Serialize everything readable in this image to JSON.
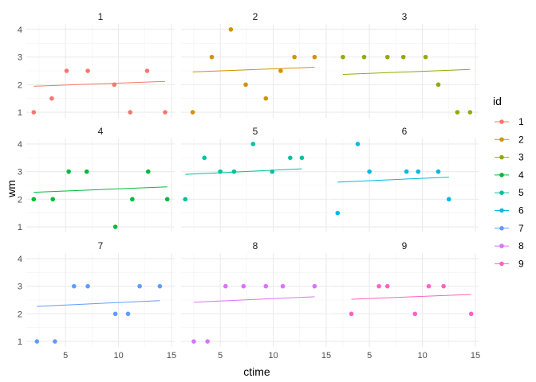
{
  "chart_data": {
    "type": "scatter",
    "facet_by": "id",
    "xlabel": "ctime",
    "ylabel": "wm",
    "xlim": [
      1.3,
      15.3
    ],
    "ylim": [
      0.8,
      4.2
    ],
    "xticks": [
      5,
      10,
      15
    ],
    "yticks": [
      1,
      2,
      3,
      4
    ],
    "grid": true,
    "legend": {
      "title": "id",
      "position": "right"
    },
    "colors": [
      "#F8766D",
      "#D39200",
      "#93AA00",
      "#00BA38",
      "#00C19F",
      "#00B9E3",
      "#619CFF",
      "#DB72FB",
      "#FF61C3"
    ],
    "series": [
      {
        "name": "1",
        "points": [
          [
            2.0,
            1
          ],
          [
            3.7,
            1.5
          ],
          [
            5.1,
            2.5
          ],
          [
            7.1,
            2.5
          ],
          [
            9.6,
            2
          ],
          [
            11.1,
            1
          ],
          [
            12.7,
            2.5
          ],
          [
            14.4,
            1
          ]
        ],
        "fit": [
          [
            2.0,
            1.94
          ],
          [
            14.4,
            2.12
          ]
        ]
      },
      {
        "name": "2",
        "points": [
          [
            2.4,
            1
          ],
          [
            4.2,
            3
          ],
          [
            6.0,
            4
          ],
          [
            7.4,
            2
          ],
          [
            9.3,
            1.5
          ],
          [
            10.7,
            2.5
          ],
          [
            12.0,
            3
          ],
          [
            13.9,
            3
          ]
        ],
        "fit": [
          [
            2.4,
            2.46
          ],
          [
            13.9,
            2.63
          ]
        ]
      },
      {
        "name": "3",
        "points": [
          [
            2.5,
            3
          ],
          [
            4.5,
            3
          ],
          [
            6.7,
            3
          ],
          [
            8.2,
            3
          ],
          [
            10.3,
            3
          ],
          [
            11.5,
            2
          ],
          [
            13.3,
            1
          ],
          [
            14.5,
            1
          ]
        ],
        "fit": [
          [
            2.5,
            2.37
          ],
          [
            14.5,
            2.55
          ]
        ]
      },
      {
        "name": "4",
        "points": [
          [
            2.0,
            2
          ],
          [
            3.8,
            2
          ],
          [
            5.3,
            3
          ],
          [
            7.0,
            3
          ],
          [
            9.7,
            1
          ],
          [
            11.3,
            2
          ],
          [
            12.8,
            3
          ],
          [
            14.6,
            2
          ]
        ],
        "fit": [
          [
            2.0,
            2.25
          ],
          [
            14.6,
            2.45
          ]
        ]
      },
      {
        "name": "5",
        "points": [
          [
            1.7,
            2
          ],
          [
            3.5,
            3.5
          ],
          [
            5.0,
            3
          ],
          [
            6.3,
            3
          ],
          [
            8.1,
            4
          ],
          [
            9.9,
            3
          ],
          [
            11.6,
            3.5
          ],
          [
            12.7,
            3.5
          ]
        ],
        "fit": [
          [
            1.7,
            2.9
          ],
          [
            12.7,
            3.1
          ]
        ]
      },
      {
        "name": "6",
        "points": [
          [
            2.0,
            1.5
          ],
          [
            3.9,
            4
          ],
          [
            5.0,
            3
          ],
          [
            8.5,
            3
          ],
          [
            9.6,
            3
          ],
          [
            11.5,
            3
          ],
          [
            12.5,
            2
          ]
        ],
        "fit": [
          [
            2.0,
            2.62
          ],
          [
            12.5,
            2.8
          ]
        ]
      },
      {
        "name": "7",
        "points": [
          [
            2.3,
            1
          ],
          [
            4.0,
            1
          ],
          [
            5.8,
            3
          ],
          [
            7.1,
            3
          ],
          [
            9.7,
            2
          ],
          [
            10.9,
            2
          ],
          [
            12.0,
            3
          ],
          [
            13.9,
            3
          ]
        ],
        "fit": [
          [
            2.3,
            2.27
          ],
          [
            13.9,
            2.48
          ]
        ]
      },
      {
        "name": "8",
        "points": [
          [
            2.5,
            1
          ],
          [
            3.8,
            1
          ],
          [
            5.5,
            3
          ],
          [
            7.2,
            3
          ],
          [
            9.3,
            3
          ],
          [
            10.9,
            3
          ],
          [
            13.9,
            3
          ]
        ],
        "fit": [
          [
            2.5,
            2.42
          ],
          [
            13.9,
            2.62
          ]
        ]
      },
      {
        "name": "9",
        "points": [
          [
            3.3,
            2
          ],
          [
            5.9,
            3
          ],
          [
            6.7,
            3
          ],
          [
            9.3,
            2
          ],
          [
            10.6,
            3
          ],
          [
            12.0,
            3
          ],
          [
            14.6,
            2
          ]
        ],
        "fit": [
          [
            3.3,
            2.53
          ],
          [
            14.6,
            2.7
          ]
        ]
      }
    ]
  }
}
